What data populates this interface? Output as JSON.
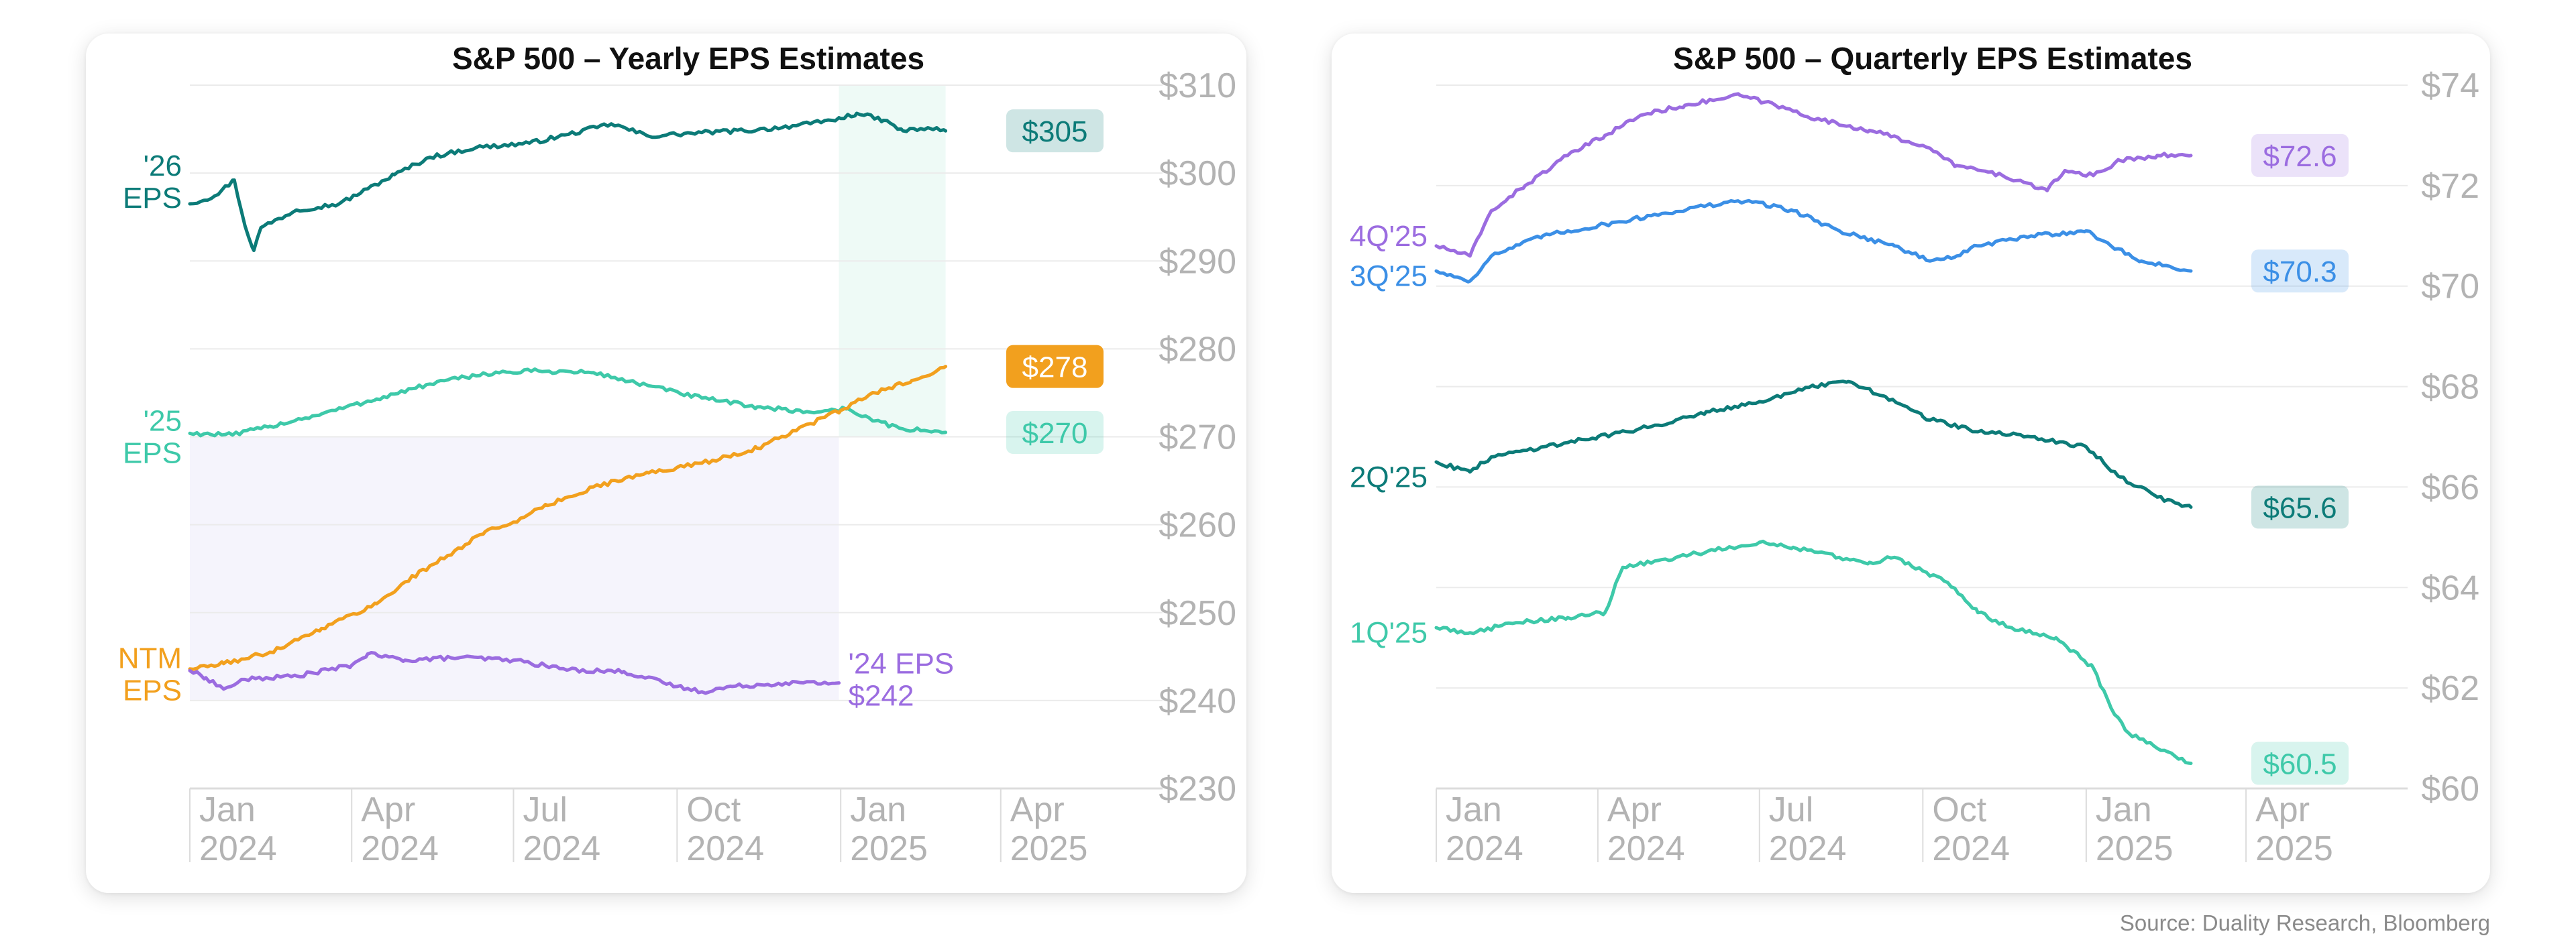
{
  "source": "Source: Duality Research, Bloomberg",
  "colors": {
    "eps26": "#0c7b78",
    "eps25": "#3ec9a9",
    "ntm": "#f2a01e",
    "eps24": "#9b6ce0",
    "q4": "#9b6ce0",
    "q3": "#3b8fe6",
    "q2": "#0c7b78",
    "q1": "#3ec9a9",
    "axis_text": "#b3b3b3",
    "grid": "#ebebeb"
  },
  "chart_data": [
    {
      "type": "line",
      "title": "S&P 500 – Yearly EPS Estimates",
      "xlabel": "",
      "ylabel": "",
      "x_ticks": [
        {
          "date": "2024-01-01",
          "label": [
            "Jan",
            "2024"
          ]
        },
        {
          "date": "2024-04-01",
          "label": [
            "Apr",
            "2024"
          ]
        },
        {
          "date": "2024-07-01",
          "label": [
            "Jul",
            "2024"
          ]
        },
        {
          "date": "2024-10-01",
          "label": [
            "Oct",
            "2024"
          ]
        },
        {
          "date": "2025-01-01",
          "label": [
            "Jan",
            "2025"
          ]
        },
        {
          "date": "2025-04-01",
          "label": [
            "Apr",
            "2025"
          ]
        }
      ],
      "xlim": [
        "2024-01-01",
        "2025-07-01"
      ],
      "y_ticks": [
        230,
        240,
        250,
        260,
        270,
        280,
        290,
        300,
        310
      ],
      "y_tick_prefix": "$",
      "ylim": [
        230,
        310
      ],
      "shaded_regions": [
        {
          "x": [
            "2024-01-01",
            "2024-12-31"
          ],
          "y": [
            240,
            270
          ],
          "color": "#f5f4fc"
        },
        {
          "x": [
            "2024-12-31",
            "2025-03-01"
          ],
          "y": [
            270,
            310
          ],
          "color": "#eefaf6"
        }
      ],
      "series": [
        {
          "name": "'26 EPS",
          "label_lines": [
            "'26",
            "EPS"
          ],
          "color_key": "eps26",
          "end_label": "$305",
          "points": [
            [
              "2024-01-01",
              296.5
            ],
            [
              "2024-01-15",
              297.4
            ],
            [
              "2024-01-26",
              299.2
            ],
            [
              "2024-02-01",
              294.0
            ],
            [
              "2024-02-06",
              291.2
            ],
            [
              "2024-02-10",
              293.8
            ],
            [
              "2024-03-01",
              295.8
            ],
            [
              "2024-03-25",
              296.5
            ],
            [
              "2024-04-10",
              298.2
            ],
            [
              "2024-04-25",
              299.8
            ],
            [
              "2024-05-15",
              301.8
            ],
            [
              "2024-06-10",
              302.9
            ],
            [
              "2024-07-10",
              303.4
            ],
            [
              "2024-08-01",
              304.4
            ],
            [
              "2024-08-25",
              305.6
            ],
            [
              "2024-09-15",
              304.2
            ],
            [
              "2024-10-15",
              304.6
            ],
            [
              "2024-11-15",
              304.9
            ],
            [
              "2024-12-15",
              305.6
            ],
            [
              "2025-01-01",
              306.2
            ],
            [
              "2025-01-10",
              306.8
            ],
            [
              "2025-01-25",
              306.0
            ],
            [
              "2025-02-05",
              304.8
            ],
            [
              "2025-02-20",
              305.1
            ],
            [
              "2025-03-01",
              304.8
            ]
          ]
        },
        {
          "name": "'25 EPS",
          "label_lines": [
            "'25",
            "EPS"
          ],
          "color_key": "eps25",
          "end_label": "$270",
          "points": [
            [
              "2024-01-01",
              270.4
            ],
            [
              "2024-01-25",
              270.2
            ],
            [
              "2024-02-15",
              271.2
            ],
            [
              "2024-03-15",
              272.6
            ],
            [
              "2024-04-15",
              274.3
            ],
            [
              "2024-05-15",
              276.0
            ],
            [
              "2024-06-15",
              277.2
            ],
            [
              "2024-07-15",
              277.5
            ],
            [
              "2024-08-15",
              277.3
            ],
            [
              "2024-09-15",
              275.8
            ],
            [
              "2024-10-15",
              274.4
            ],
            [
              "2024-11-15",
              273.4
            ],
            [
              "2024-12-15",
              272.8
            ],
            [
              "2025-01-05",
              273.2
            ],
            [
              "2025-01-20",
              271.8
            ],
            [
              "2025-02-05",
              270.9
            ],
            [
              "2025-03-01",
              270.5
            ]
          ]
        },
        {
          "name": "NTM EPS",
          "label_lines": [
            "NTM",
            "EPS"
          ],
          "color_key": "ntm",
          "end_label": "$278",
          "points": [
            [
              "2024-01-01",
              243.6
            ],
            [
              "2024-01-20",
              244.2
            ],
            [
              "2024-02-15",
              245.5
            ],
            [
              "2024-03-15",
              248.2
            ],
            [
              "2024-04-15",
              251.0
            ],
            [
              "2024-05-01",
              253.5
            ],
            [
              "2024-05-25",
              256.5
            ],
            [
              "2024-06-15",
              259.2
            ],
            [
              "2024-07-01",
              260.3
            ],
            [
              "2024-07-20",
              262.2
            ],
            [
              "2024-08-15",
              264.3
            ],
            [
              "2024-09-15",
              265.9
            ],
            [
              "2024-10-15",
              267.0
            ],
            [
              "2024-11-15",
              268.7
            ],
            [
              "2024-12-15",
              271.5
            ],
            [
              "2025-01-01",
              273.0
            ],
            [
              "2025-01-20",
              275.0
            ],
            [
              "2025-02-10",
              276.4
            ],
            [
              "2025-03-01",
              278.0
            ]
          ]
        },
        {
          "name": "'24 EPS",
          "label_lines": [
            "'24 EPS",
            "$242"
          ],
          "color_key": "eps24",
          "points": [
            [
              "2024-01-01",
              243.4
            ],
            [
              "2024-01-10",
              242.6
            ],
            [
              "2024-01-20",
              241.3
            ],
            [
              "2024-02-01",
              242.4
            ],
            [
              "2024-03-01",
              242.8
            ],
            [
              "2024-04-01",
              244.0
            ],
            [
              "2024-04-10",
              245.3
            ],
            [
              "2024-05-01",
              244.6
            ],
            [
              "2024-06-01",
              244.9
            ],
            [
              "2024-07-01",
              244.6
            ],
            [
              "2024-08-01",
              243.5
            ],
            [
              "2024-09-01",
              243.3
            ],
            [
              "2024-10-01",
              241.6
            ],
            [
              "2024-10-15",
              241.0
            ],
            [
              "2024-11-01",
              241.6
            ],
            [
              "2024-12-01",
              242.0
            ],
            [
              "2024-12-31",
              242.0
            ]
          ]
        }
      ]
    },
    {
      "type": "line",
      "title": "S&P 500 – Quarterly EPS Estimates",
      "xlabel": "",
      "ylabel": "",
      "x_ticks": [
        {
          "date": "2024-01-01",
          "label": [
            "Jan",
            "2024"
          ]
        },
        {
          "date": "2024-04-01",
          "label": [
            "Apr",
            "2024"
          ]
        },
        {
          "date": "2024-07-01",
          "label": [
            "Jul",
            "2024"
          ]
        },
        {
          "date": "2024-10-01",
          "label": [
            "Oct",
            "2024"
          ]
        },
        {
          "date": "2025-01-01",
          "label": [
            "Jan",
            "2025"
          ]
        },
        {
          "date": "2025-04-01",
          "label": [
            "Apr",
            "2025"
          ]
        }
      ],
      "xlim": [
        "2024-01-01",
        "2025-07-01"
      ],
      "y_ticks": [
        60,
        62,
        64,
        66,
        68,
        70,
        72,
        74
      ],
      "y_tick_prefix": "$",
      "ylim": [
        60,
        74
      ],
      "series": [
        {
          "name": "4Q'25",
          "label_lines": [
            "4Q'25"
          ],
          "color_key": "q4",
          "end_label": "$72.6",
          "points": [
            [
              "2024-01-01",
              70.8
            ],
            [
              "2024-01-20",
              70.6
            ],
            [
              "2024-02-01",
              71.5
            ],
            [
              "2024-02-20",
              72.0
            ],
            [
              "2024-03-15",
              72.6
            ],
            [
              "2024-04-05",
              73.0
            ],
            [
              "2024-04-25",
              73.4
            ],
            [
              "2024-05-20",
              73.6
            ],
            [
              "2024-06-20",
              73.8
            ],
            [
              "2024-07-10",
              73.6
            ],
            [
              "2024-08-05",
              73.3
            ],
            [
              "2024-09-01",
              73.1
            ],
            [
              "2024-10-01",
              72.8
            ],
            [
              "2024-10-20",
              72.4
            ],
            [
              "2024-11-15",
              72.2
            ],
            [
              "2024-12-10",
              71.9
            ],
            [
              "2024-12-20",
              72.3
            ],
            [
              "2025-01-05",
              72.2
            ],
            [
              "2025-01-20",
              72.5
            ],
            [
              "2025-02-10",
              72.6
            ],
            [
              "2025-03-01",
              72.6
            ]
          ]
        },
        {
          "name": "3Q'25",
          "label_lines": [
            "3Q'25"
          ],
          "color_key": "q3",
          "end_label": "$70.3",
          "points": [
            [
              "2024-01-01",
              70.3
            ],
            [
              "2024-01-20",
              70.1
            ],
            [
              "2024-02-01",
              70.6
            ],
            [
              "2024-03-01",
              71.0
            ],
            [
              "2024-04-01",
              71.2
            ],
            [
              "2024-05-01",
              71.4
            ],
            [
              "2024-06-01",
              71.6
            ],
            [
              "2024-06-25",
              71.7
            ],
            [
              "2024-07-20",
              71.5
            ],
            [
              "2024-08-15",
              71.1
            ],
            [
              "2024-09-15",
              70.8
            ],
            [
              "2024-10-05",
              70.5
            ],
            [
              "2024-10-20",
              70.6
            ],
            [
              "2024-11-01",
              70.8
            ],
            [
              "2024-12-01",
              71.0
            ],
            [
              "2025-01-01",
              71.1
            ],
            [
              "2025-01-15",
              70.8
            ],
            [
              "2025-02-01",
              70.5
            ],
            [
              "2025-03-01",
              70.3
            ]
          ]
        },
        {
          "name": "2Q'25",
          "label_lines": [
            "2Q'25"
          ],
          "color_key": "q2",
          "end_label": "$65.6",
          "points": [
            [
              "2024-01-01",
              66.5
            ],
            [
              "2024-01-20",
              66.3
            ],
            [
              "2024-02-01",
              66.6
            ],
            [
              "2024-03-01",
              66.8
            ],
            [
              "2024-04-01",
              67.0
            ],
            [
              "2024-05-01",
              67.2
            ],
            [
              "2024-06-01",
              67.5
            ],
            [
              "2024-07-01",
              67.7
            ],
            [
              "2024-08-01",
              68.0
            ],
            [
              "2024-08-20",
              68.1
            ],
            [
              "2024-09-10",
              67.8
            ],
            [
              "2024-10-01",
              67.4
            ],
            [
              "2024-11-01",
              67.1
            ],
            [
              "2024-12-01",
              67.0
            ],
            [
              "2025-01-01",
              66.8
            ],
            [
              "2025-01-20",
              66.2
            ],
            [
              "2025-02-10",
              65.8
            ],
            [
              "2025-03-01",
              65.6
            ]
          ]
        },
        {
          "name": "1Q'25",
          "label_lines": [
            "1Q'25"
          ],
          "color_key": "q1",
          "end_label": "$60.5",
          "points": [
            [
              "2024-01-01",
              63.2
            ],
            [
              "2024-01-20",
              63.1
            ],
            [
              "2024-02-15",
              63.3
            ],
            [
              "2024-03-15",
              63.4
            ],
            [
              "2024-04-05",
              63.5
            ],
            [
              "2024-04-15",
              64.4
            ],
            [
              "2024-05-15",
              64.6
            ],
            [
              "2024-06-15",
              64.8
            ],
            [
              "2024-07-01",
              64.9
            ],
            [
              "2024-07-20",
              64.8
            ],
            [
              "2024-08-15",
              64.6
            ],
            [
              "2024-09-01",
              64.5
            ],
            [
              "2024-09-15",
              64.6
            ],
            [
              "2024-10-15",
              64.1
            ],
            [
              "2024-11-01",
              63.5
            ],
            [
              "2024-11-20",
              63.2
            ],
            [
              "2024-12-15",
              63.0
            ],
            [
              "2025-01-05",
              62.4
            ],
            [
              "2025-01-15",
              61.6
            ],
            [
              "2025-01-25",
              61.1
            ],
            [
              "2025-02-10",
              60.8
            ],
            [
              "2025-03-01",
              60.5
            ]
          ]
        }
      ]
    }
  ]
}
